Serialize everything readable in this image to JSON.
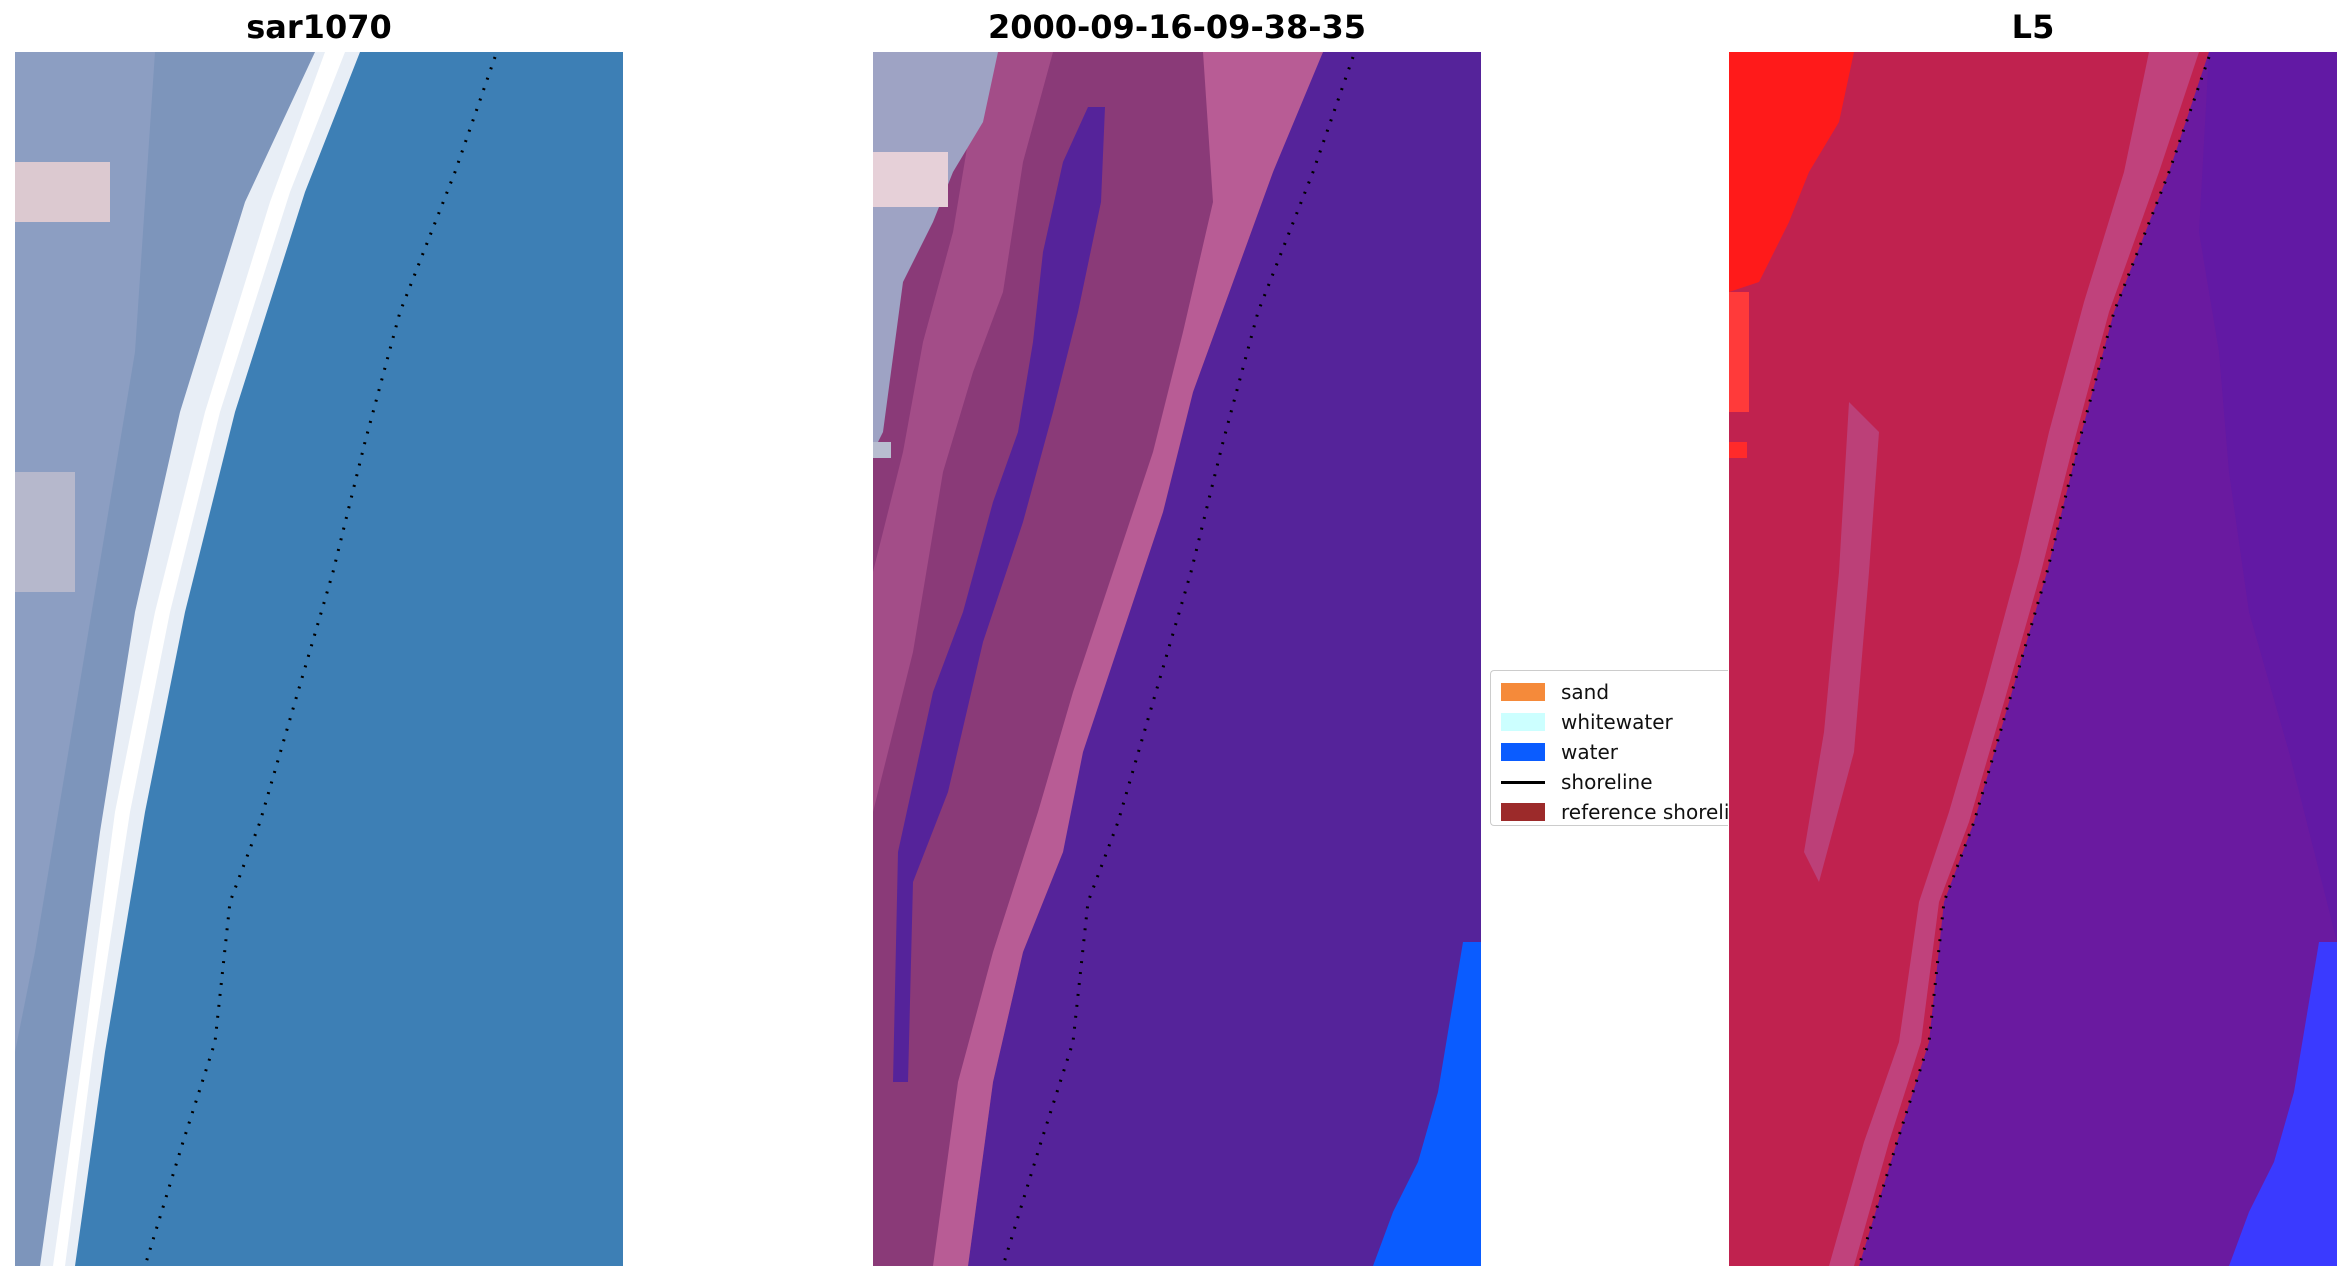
{
  "panels": [
    {
      "title": "sar1070"
    },
    {
      "title": "2000-09-16-09-38-35"
    },
    {
      "title": "L5"
    }
  ],
  "legend": {
    "items": [
      {
        "label": "sand",
        "kind": "patch",
        "color": "#f58a3a"
      },
      {
        "label": "whitewater",
        "kind": "patch",
        "color": "#ccffff"
      },
      {
        "label": "water",
        "kind": "patch",
        "color": "#0a5cff"
      },
      {
        "label": "shoreline",
        "kind": "line",
        "color": "#000000"
      },
      {
        "label": "reference shoreline",
        "kind": "patch",
        "color": "#9c2a2a"
      }
    ]
  },
  "colors": {
    "rgb_water": "#3d7fb5",
    "rgb_surf": "#f2f6fa",
    "rgb_land": "#7a92b8",
    "class_water": "#55239a",
    "class_land_dark": "#8a3a78",
    "class_land_light": "#b85c95",
    "class_water_blue": "#0a5cff",
    "ndwi_land": "#c0224f",
    "ndwi_water": "#6a1aa0",
    "ndwi_bright": "#ff1a1a",
    "ndwi_blue": "#3a3aff"
  }
}
